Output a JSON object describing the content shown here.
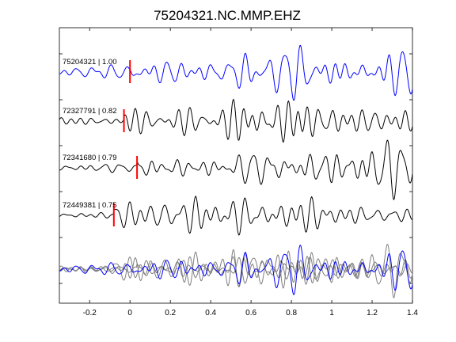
{
  "chart_data": {
    "type": "line",
    "title": "75204321.NC.MMP.EHZ",
    "xlabel": "",
    "ylabel": "",
    "xlim": [
      -0.35,
      1.4
    ],
    "x_ticks": [
      -0.2,
      0,
      0.2,
      0.4,
      0.6,
      0.8,
      1,
      1.2,
      1.4
    ],
    "x_tick_labels": [
      "-0.2",
      "0",
      "0.2",
      "0.4",
      "0.6",
      "0.8",
      "1",
      "1.2",
      "1.4"
    ],
    "grid": false,
    "traces": [
      {
        "label": "75204321 | 1.00",
        "event_id": "75204321",
        "correlation": 1.0,
        "pick_time": 0.0,
        "color": "#0000ff"
      },
      {
        "label": "72327791 | 0.82",
        "event_id": "72327791",
        "correlation": 0.82,
        "pick_time": -0.03,
        "color": "#000000"
      },
      {
        "label": "72341680 | 0.79",
        "event_id": "72341680",
        "correlation": 0.79,
        "pick_time": 0.035,
        "color": "#000000"
      },
      {
        "label": "72449381 | 0.75",
        "event_id": "72449381",
        "correlation": 0.75,
        "pick_time": -0.08,
        "color": "#000000"
      }
    ],
    "stack_colors": {
      "reference": "#0000ff",
      "others": "#7f7f7f"
    },
    "pick_color": "#ff0000"
  }
}
